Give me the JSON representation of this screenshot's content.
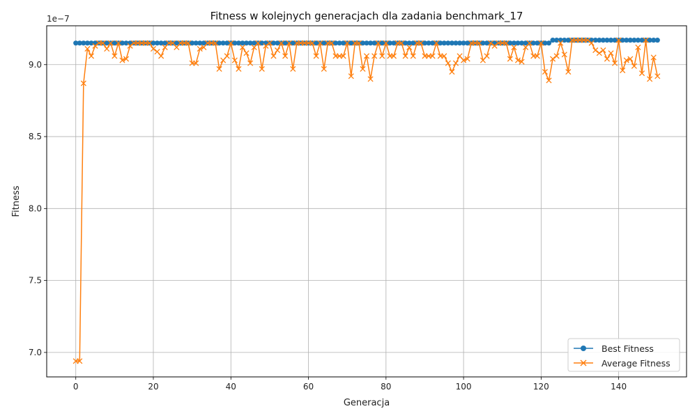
{
  "chart_data": {
    "type": "line",
    "title": "Fitness w kolejnych generacjach dla zadania benchmark_17",
    "xlabel": "Generacja",
    "ylabel": "Fitness",
    "y_scale_label": "1e−7",
    "xlim": [
      -7.5,
      157.5
    ],
    "ylim": [
      6.83,
      9.27
    ],
    "xticks": [
      0,
      20,
      40,
      60,
      80,
      100,
      120,
      140
    ],
    "yticks": [
      7.0,
      7.5,
      8.0,
      8.5,
      9.0
    ],
    "ytick_labels": [
      "7.0",
      "7.5",
      "8.0",
      "8.5",
      "9.0"
    ],
    "grid": true,
    "legend_position": "bottom-right",
    "series": [
      {
        "name": "Best Fitness",
        "color": "#1f77b4",
        "marker": "circle",
        "values": [
          9.15,
          9.15,
          9.15,
          9.15,
          9.15,
          9.15,
          9.15,
          9.15,
          9.15,
          9.15,
          9.15,
          9.15,
          9.15,
          9.15,
          9.15,
          9.15,
          9.15,
          9.15,
          9.15,
          9.15,
          9.15,
          9.15,
          9.15,
          9.15,
          9.15,
          9.15,
          9.15,
          9.15,
          9.15,
          9.15,
          9.15,
          9.15,
          9.15,
          9.15,
          9.15,
          9.15,
          9.15,
          9.15,
          9.15,
          9.15,
          9.15,
          9.15,
          9.15,
          9.15,
          9.15,
          9.15,
          9.15,
          9.15,
          9.15,
          9.15,
          9.15,
          9.15,
          9.15,
          9.15,
          9.15,
          9.15,
          9.15,
          9.15,
          9.15,
          9.15,
          9.15,
          9.15,
          9.15,
          9.15,
          9.15,
          9.15,
          9.15,
          9.15,
          9.15,
          9.15,
          9.15,
          9.15,
          9.15,
          9.15,
          9.15,
          9.15,
          9.15,
          9.15,
          9.15,
          9.15,
          9.15,
          9.15,
          9.15,
          9.15,
          9.15,
          9.15,
          9.15,
          9.15,
          9.15,
          9.15,
          9.15,
          9.15,
          9.15,
          9.15,
          9.15,
          9.15,
          9.15,
          9.15,
          9.15,
          9.15,
          9.15,
          9.15,
          9.15,
          9.15,
          9.15,
          9.15,
          9.15,
          9.15,
          9.15,
          9.15,
          9.15,
          9.15,
          9.15,
          9.15,
          9.15,
          9.15,
          9.15,
          9.15,
          9.15,
          9.15,
          9.15,
          9.15,
          9.15,
          9.17,
          9.17,
          9.17,
          9.17,
          9.17,
          9.17,
          9.17,
          9.17,
          9.17,
          9.17,
          9.17,
          9.17,
          9.17,
          9.17,
          9.17,
          9.17,
          9.17,
          9.17,
          9.17,
          9.17,
          9.17,
          9.17,
          9.17,
          9.17,
          9.17,
          9.17,
          9.17,
          9.17
        ]
      },
      {
        "name": "Average Fitness",
        "color": "#ff7f0e",
        "marker": "x",
        "values": [
          6.94,
          6.94,
          8.87,
          9.11,
          9.06,
          9.13,
          9.15,
          9.15,
          9.11,
          9.15,
          9.06,
          9.15,
          9.03,
          9.04,
          9.13,
          9.15,
          9.15,
          9.15,
          9.15,
          9.15,
          9.11,
          9.09,
          9.06,
          9.12,
          9.15,
          9.15,
          9.12,
          9.15,
          9.15,
          9.15,
          9.01,
          9.01,
          9.11,
          9.12,
          9.15,
          9.15,
          9.15,
          8.97,
          9.03,
          9.06,
          9.15,
          9.03,
          8.97,
          9.12,
          9.08,
          9.01,
          9.12,
          9.15,
          8.97,
          9.13,
          9.15,
          9.06,
          9.1,
          9.15,
          9.06,
          9.15,
          8.97,
          9.15,
          9.15,
          9.15,
          9.15,
          9.15,
          9.06,
          9.15,
          8.97,
          9.15,
          9.15,
          9.06,
          9.06,
          9.06,
          9.15,
          8.92,
          9.15,
          9.15,
          8.97,
          9.06,
          8.9,
          9.06,
          9.15,
          9.06,
          9.15,
          9.06,
          9.06,
          9.15,
          9.15,
          9.06,
          9.12,
          9.06,
          9.15,
          9.15,
          9.06,
          9.06,
          9.06,
          9.15,
          9.06,
          9.06,
          9.01,
          8.95,
          9.01,
          9.06,
          9.03,
          9.04,
          9.15,
          9.15,
          9.15,
          9.03,
          9.06,
          9.15,
          9.13,
          9.15,
          9.15,
          9.15,
          9.04,
          9.12,
          9.03,
          9.02,
          9.12,
          9.15,
          9.06,
          9.06,
          9.15,
          8.95,
          8.89,
          9.04,
          9.06,
          9.15,
          9.07,
          8.95,
          9.17,
          9.17,
          9.17,
          9.17,
          9.17,
          9.15,
          9.1,
          9.08,
          9.1,
          9.04,
          9.08,
          9.01,
          9.17,
          8.96,
          9.03,
          9.04,
          8.99,
          9.12,
          8.94,
          9.17,
          8.9,
          9.05,
          8.92
        ]
      }
    ]
  }
}
